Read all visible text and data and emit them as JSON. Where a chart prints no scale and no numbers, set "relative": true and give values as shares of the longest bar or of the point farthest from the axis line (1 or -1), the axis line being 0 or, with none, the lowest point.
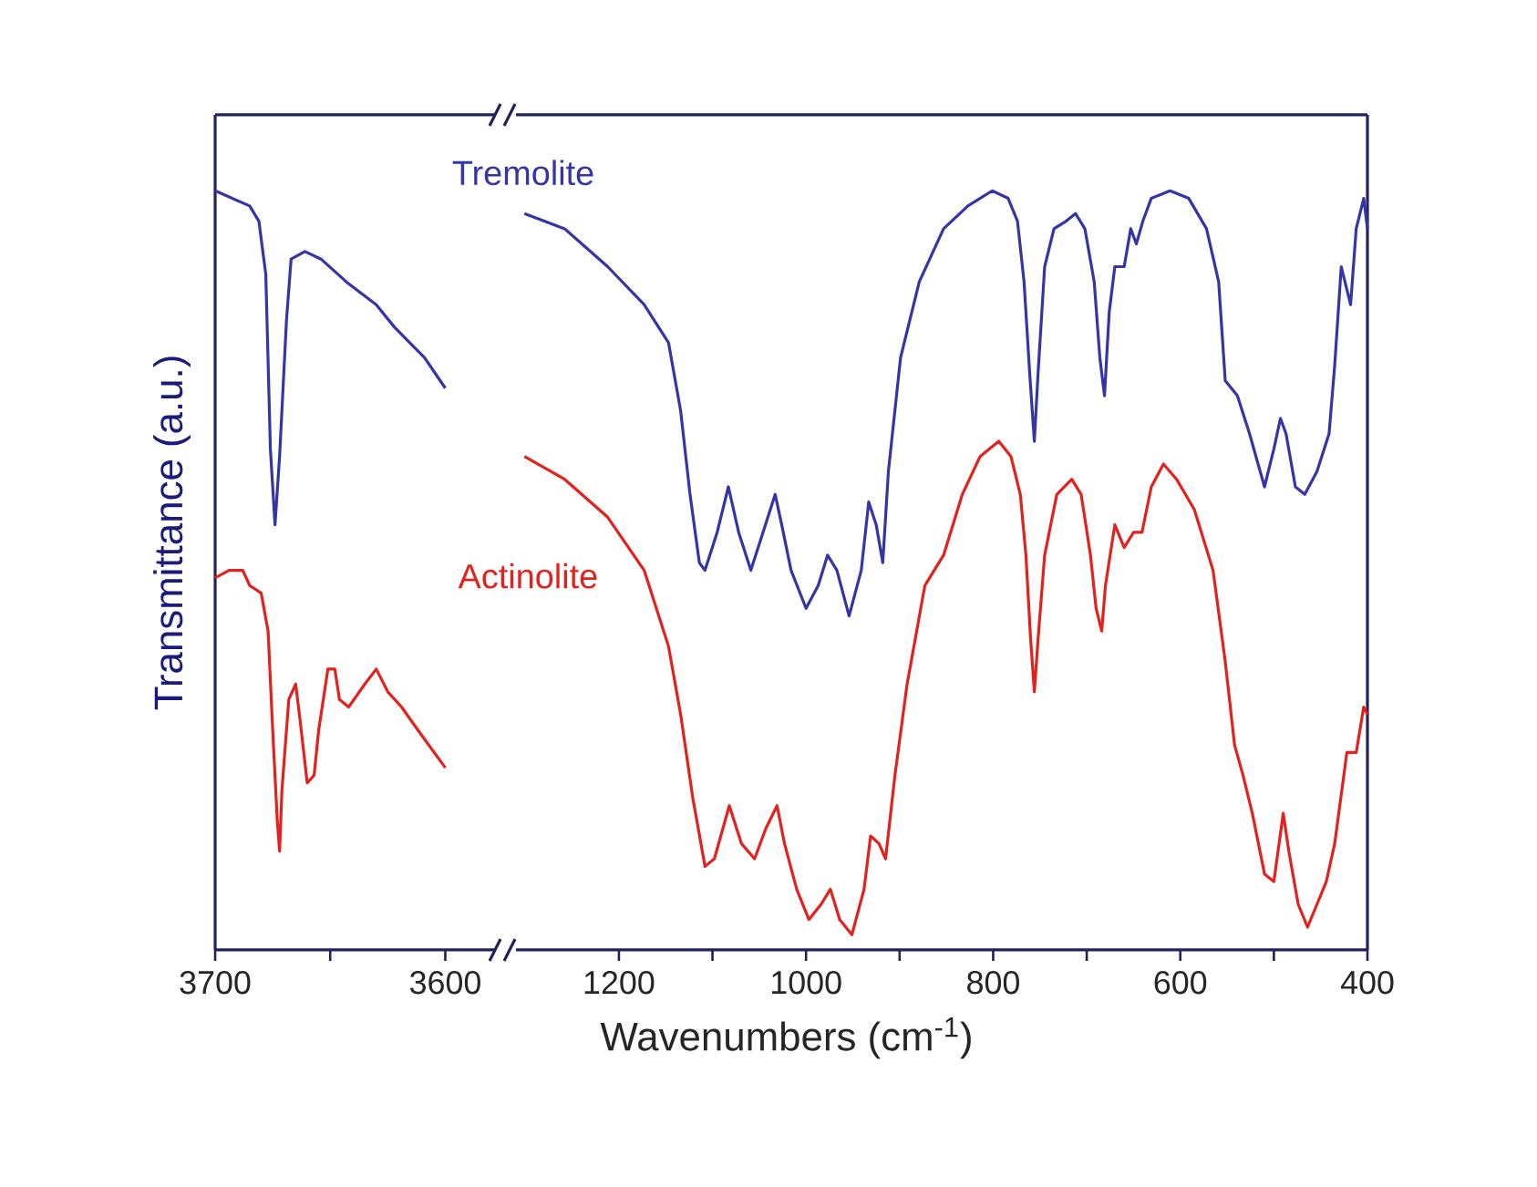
{
  "chart_data": [
    {
      "type": "line",
      "relative": true,
      "ylabel": "Transmittance (a.u.)",
      "xlim": [
        3700,
        3578
      ],
      "xticks": [
        3700,
        {
          "value": 3650,
          "label": null
        },
        3600
      ],
      "series": [
        {
          "color": "#3535a8",
          "x": [
            3700,
            3685,
            3681,
            3678,
            3676,
            3674,
            3672,
            3669,
            3667,
            3661,
            3654,
            3643,
            3630,
            3622,
            3609,
            3600
          ],
          "values": [
            1.0,
            0.98,
            0.96,
            0.89,
            0.66,
            0.56,
            0.65,
            0.83,
            0.91,
            0.92,
            0.91,
            0.88,
            0.85,
            0.82,
            0.78,
            0.74
          ]
        },
        {
          "color": "#e3221e",
          "x": [
            3700,
            3694,
            3688,
            3685,
            3680,
            3677,
            3675,
            3673,
            3672,
            3671,
            3668,
            3665,
            3663,
            3660,
            3657,
            3655,
            3651,
            3648,
            3646,
            3642,
            3635,
            3630,
            3625,
            3619,
            3612,
            3600
          ],
          "values": [
            0.49,
            0.5,
            0.5,
            0.48,
            0.47,
            0.42,
            0.29,
            0.17,
            0.13,
            0.21,
            0.33,
            0.35,
            0.3,
            0.22,
            0.23,
            0.29,
            0.37,
            0.37,
            0.33,
            0.32,
            0.35,
            0.37,
            0.34,
            0.32,
            0.29,
            0.24
          ]
        }
      ]
    },
    {
      "type": "line",
      "relative": true,
      "xlabel": "Wavenumbers (cm$^{-1}$)",
      "xlim": [
        1310,
        400
      ],
      "xticks": [
        1200,
        {
          "value": 1100,
          "label": null
        },
        1000,
        {
          "value": 900,
          "label": null
        },
        800,
        {
          "value": 700,
          "label": null
        },
        600,
        {
          "value": 500,
          "label": null
        },
        400
      ],
      "series": [
        {
          "name": "Tremolite",
          "color": "#3535a8",
          "x": [
            1301,
            1258,
            1212,
            1173,
            1147,
            1134,
            1124,
            1114,
            1108,
            1095,
            1083,
            1072,
            1059,
            1046,
            1033,
            1026,
            1016,
            1000,
            987,
            977,
            967,
            954,
            941,
            933,
            925,
            918,
            912,
            899,
            879,
            853,
            827,
            801,
            784,
            774,
            767,
            761,
            756,
            752,
            745,
            735,
            722,
            712,
            702,
            692,
            686,
            681,
            676,
            670,
            660,
            653,
            647,
            640,
            631,
            611,
            591,
            572,
            559,
            552,
            539,
            526,
            510,
            500,
            493,
            487,
            477,
            467,
            454,
            441,
            435,
            428,
            418,
            412,
            404,
            400
          ],
          "values": [
            0.97,
            0.95,
            0.9,
            0.85,
            0.8,
            0.71,
            0.6,
            0.51,
            0.5,
            0.55,
            0.61,
            0.55,
            0.5,
            0.55,
            0.6,
            0.56,
            0.5,
            0.45,
            0.48,
            0.52,
            0.5,
            0.44,
            0.5,
            0.59,
            0.56,
            0.51,
            0.63,
            0.78,
            0.88,
            0.95,
            0.98,
            1.0,
            0.99,
            0.96,
            0.88,
            0.76,
            0.67,
            0.76,
            0.9,
            0.95,
            0.96,
            0.97,
            0.95,
            0.88,
            0.78,
            0.73,
            0.84,
            0.9,
            0.9,
            0.95,
            0.93,
            0.96,
            0.99,
            1.0,
            0.99,
            0.95,
            0.88,
            0.75,
            0.73,
            0.68,
            0.61,
            0.66,
            0.7,
            0.68,
            0.61,
            0.6,
            0.63,
            0.68,
            0.77,
            0.9,
            0.85,
            0.95,
            0.99,
            0.95
          ]
        },
        {
          "name": "Actinolite",
          "color": "#e3221e",
          "x": [
            1301,
            1258,
            1212,
            1173,
            1147,
            1134,
            1121,
            1108,
            1098,
            1082,
            1069,
            1055,
            1043,
            1031,
            1023,
            1010,
            997,
            984,
            974,
            964,
            951,
            938,
            931,
            922,
            915,
            905,
            892,
            873,
            853,
            833,
            814,
            794,
            781,
            771,
            765,
            760,
            756,
            752,
            745,
            732,
            716,
            706,
            696,
            690,
            684,
            680,
            670,
            660,
            650,
            641,
            631,
            618,
            604,
            585,
            565,
            552,
            542,
            533,
            523,
            510,
            500,
            490,
            484,
            474,
            464,
            454,
            444,
            435,
            422,
            412,
            404,
            400
          ],
          "values": [
            0.65,
            0.62,
            0.57,
            0.5,
            0.4,
            0.31,
            0.2,
            0.11,
            0.12,
            0.19,
            0.14,
            0.12,
            0.16,
            0.19,
            0.14,
            0.08,
            0.04,
            0.06,
            0.08,
            0.04,
            0.02,
            0.08,
            0.15,
            0.14,
            0.12,
            0.23,
            0.35,
            0.48,
            0.52,
            0.6,
            0.65,
            0.67,
            0.65,
            0.6,
            0.52,
            0.41,
            0.34,
            0.41,
            0.52,
            0.6,
            0.62,
            0.6,
            0.52,
            0.45,
            0.42,
            0.48,
            0.56,
            0.53,
            0.55,
            0.55,
            0.61,
            0.64,
            0.62,
            0.58,
            0.5,
            0.38,
            0.27,
            0.23,
            0.18,
            0.1,
            0.09,
            0.18,
            0.13,
            0.06,
            0.03,
            0.06,
            0.09,
            0.14,
            0.26,
            0.26,
            0.32,
            0.31
          ]
        }
      ]
    }
  ]
}
